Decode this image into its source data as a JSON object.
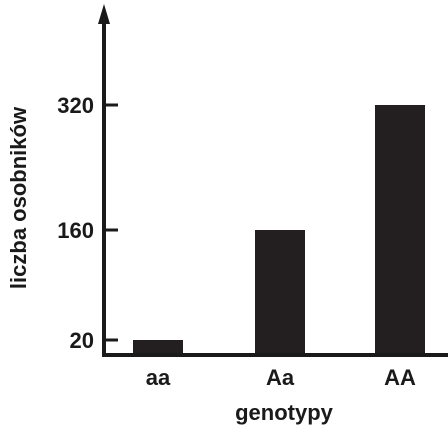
{
  "chart_data": {
    "type": "bar",
    "categories": [
      "aa",
      "Aa",
      "AA"
    ],
    "values": [
      20,
      160,
      320
    ],
    "yticks": [
      20,
      160,
      320
    ],
    "ylim": [
      0,
      440
    ],
    "title": "",
    "xlabel": "genotypy",
    "ylabel": "liczba osobników",
    "grid": false,
    "legend": "none",
    "colors": {
      "bar": "#231f20",
      "axis": "#1a1a1a",
      "text": "#1a1a1a"
    }
  }
}
